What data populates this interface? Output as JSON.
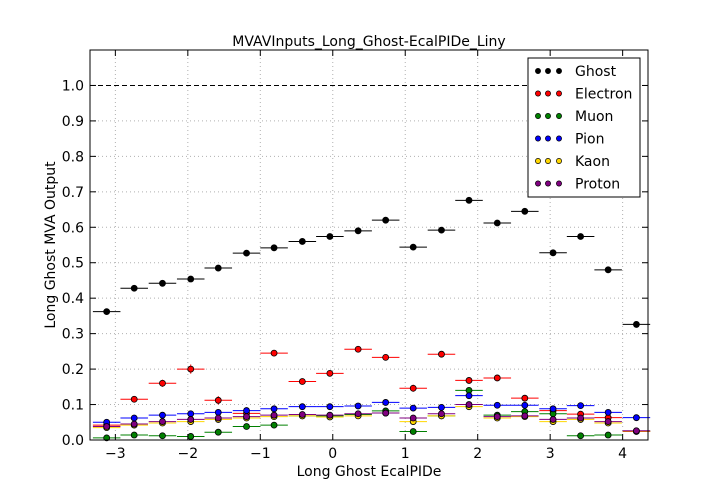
{
  "chart_data": {
    "type": "scatter",
    "title": "MVAVInputs_Long_Ghost-EcalPIDe_Liny",
    "xlabel": "Long Ghost EcalPIDe",
    "ylabel": "Long Ghost MVA Output",
    "xlim": [
      -3.35,
      4.35
    ],
    "ylim": [
      0.0,
      1.1
    ],
    "grid": true,
    "legend_position": "top-right",
    "reference_line": {
      "y": 1.0,
      "style": "dashed"
    },
    "bin_half_width": 0.19,
    "x_ticks": [
      -3,
      -2,
      -1,
      0,
      1,
      2,
      3,
      4
    ],
    "x_tick_labels": [
      "−3",
      "−2",
      "−1",
      "0",
      "1",
      "2",
      "3",
      "4"
    ],
    "y_ticks": [
      0.0,
      0.1,
      0.2,
      0.3,
      0.4,
      0.5,
      0.6,
      0.7,
      0.8,
      0.9,
      1.0
    ],
    "y_tick_labels": [
      "0.0",
      "0.1",
      "0.2",
      "0.3",
      "0.4",
      "0.5",
      "0.6",
      "0.7",
      "0.8",
      "0.9",
      "1.0"
    ],
    "x": [
      -3.12,
      -2.74,
      -2.35,
      -1.96,
      -1.58,
      -1.19,
      -0.81,
      -0.42,
      -0.04,
      0.35,
      0.73,
      1.11,
      1.5,
      1.88,
      2.27,
      2.65,
      3.04,
      3.42,
      3.8,
      4.19
    ],
    "series": [
      {
        "name": "Ghost",
        "color": "#000000",
        "values": [
          0.362,
          0.428,
          0.442,
          0.454,
          0.485,
          0.527,
          0.542,
          0.56,
          0.574,
          0.59,
          0.62,
          0.544,
          0.592,
          0.676,
          0.612,
          0.645,
          0.528,
          0.574,
          0.48,
          0.326
        ],
        "errors": [
          0.005,
          0.004,
          0.004,
          0.004,
          0.004,
          0.004,
          0.004,
          0.004,
          0.004,
          0.004,
          0.005,
          0.006,
          0.006,
          0.006,
          0.006,
          0.006,
          0.006,
          0.006,
          0.006,
          0.005
        ]
      },
      {
        "name": "Electron",
        "color": "#ff0000",
        "values": [
          0.042,
          0.115,
          0.16,
          0.2,
          0.112,
          0.075,
          0.245,
          0.165,
          0.188,
          0.256,
          0.233,
          0.146,
          0.242,
          0.168,
          0.175,
          0.118,
          0.083,
          0.073,
          0.063,
          0.024
        ],
        "errors": [
          0.005,
          0.008,
          0.01,
          0.013,
          0.012,
          0.006,
          0.006,
          0.005,
          0.005,
          0.005,
          0.005,
          0.01,
          0.005,
          0.005,
          0.005,
          0.005,
          0.005,
          0.005,
          0.005,
          0.004
        ]
      },
      {
        "name": "Muon",
        "color": "#008000",
        "values": [
          0.006,
          0.014,
          0.012,
          0.01,
          0.022,
          0.038,
          0.042,
          0.068,
          0.068,
          0.072,
          0.082,
          0.024,
          0.068,
          0.14,
          0.07,
          0.08,
          0.074,
          0.012,
          0.014,
          0.025
        ],
        "errors": [
          0.003,
          0.003,
          0.003,
          0.003,
          0.003,
          0.004,
          0.003,
          0.003,
          0.003,
          0.003,
          0.003,
          0.004,
          0.003,
          0.004,
          0.003,
          0.003,
          0.004,
          0.003,
          0.003,
          0.003
        ]
      },
      {
        "name": "Pion",
        "color": "#0000ff",
        "values": [
          0.05,
          0.062,
          0.07,
          0.074,
          0.078,
          0.083,
          0.088,
          0.094,
          0.094,
          0.096,
          0.106,
          0.09,
          0.092,
          0.125,
          0.098,
          0.098,
          0.088,
          0.097,
          0.078,
          0.063
        ],
        "errors": [
          0.002,
          0.002,
          0.002,
          0.002,
          0.002,
          0.002,
          0.002,
          0.002,
          0.002,
          0.002,
          0.002,
          0.003,
          0.003,
          0.003,
          0.003,
          0.003,
          0.003,
          0.003,
          0.003,
          0.003
        ]
      },
      {
        "name": "Kaon",
        "color": "#ffd700",
        "values": [
          0.035,
          0.042,
          0.048,
          0.052,
          0.058,
          0.062,
          0.066,
          0.068,
          0.065,
          0.068,
          0.076,
          0.052,
          0.068,
          0.094,
          0.062,
          0.066,
          0.052,
          0.058,
          0.048,
          0.025
        ],
        "errors": [
          0.002,
          0.002,
          0.002,
          0.002,
          0.002,
          0.002,
          0.002,
          0.002,
          0.002,
          0.002,
          0.002,
          0.003,
          0.003,
          0.003,
          0.003,
          0.003,
          0.003,
          0.003,
          0.003,
          0.003
        ]
      },
      {
        "name": "Proton",
        "color": "#800080",
        "values": [
          0.038,
          0.045,
          0.052,
          0.058,
          0.062,
          0.066,
          0.07,
          0.072,
          0.07,
          0.074,
          0.076,
          0.062,
          0.074,
          0.1,
          0.066,
          0.068,
          0.058,
          0.062,
          0.052,
          0.026
        ],
        "errors": [
          0.002,
          0.002,
          0.002,
          0.002,
          0.002,
          0.002,
          0.002,
          0.002,
          0.002,
          0.002,
          0.002,
          0.003,
          0.003,
          0.003,
          0.003,
          0.003,
          0.003,
          0.003,
          0.003,
          0.003
        ]
      }
    ]
  }
}
